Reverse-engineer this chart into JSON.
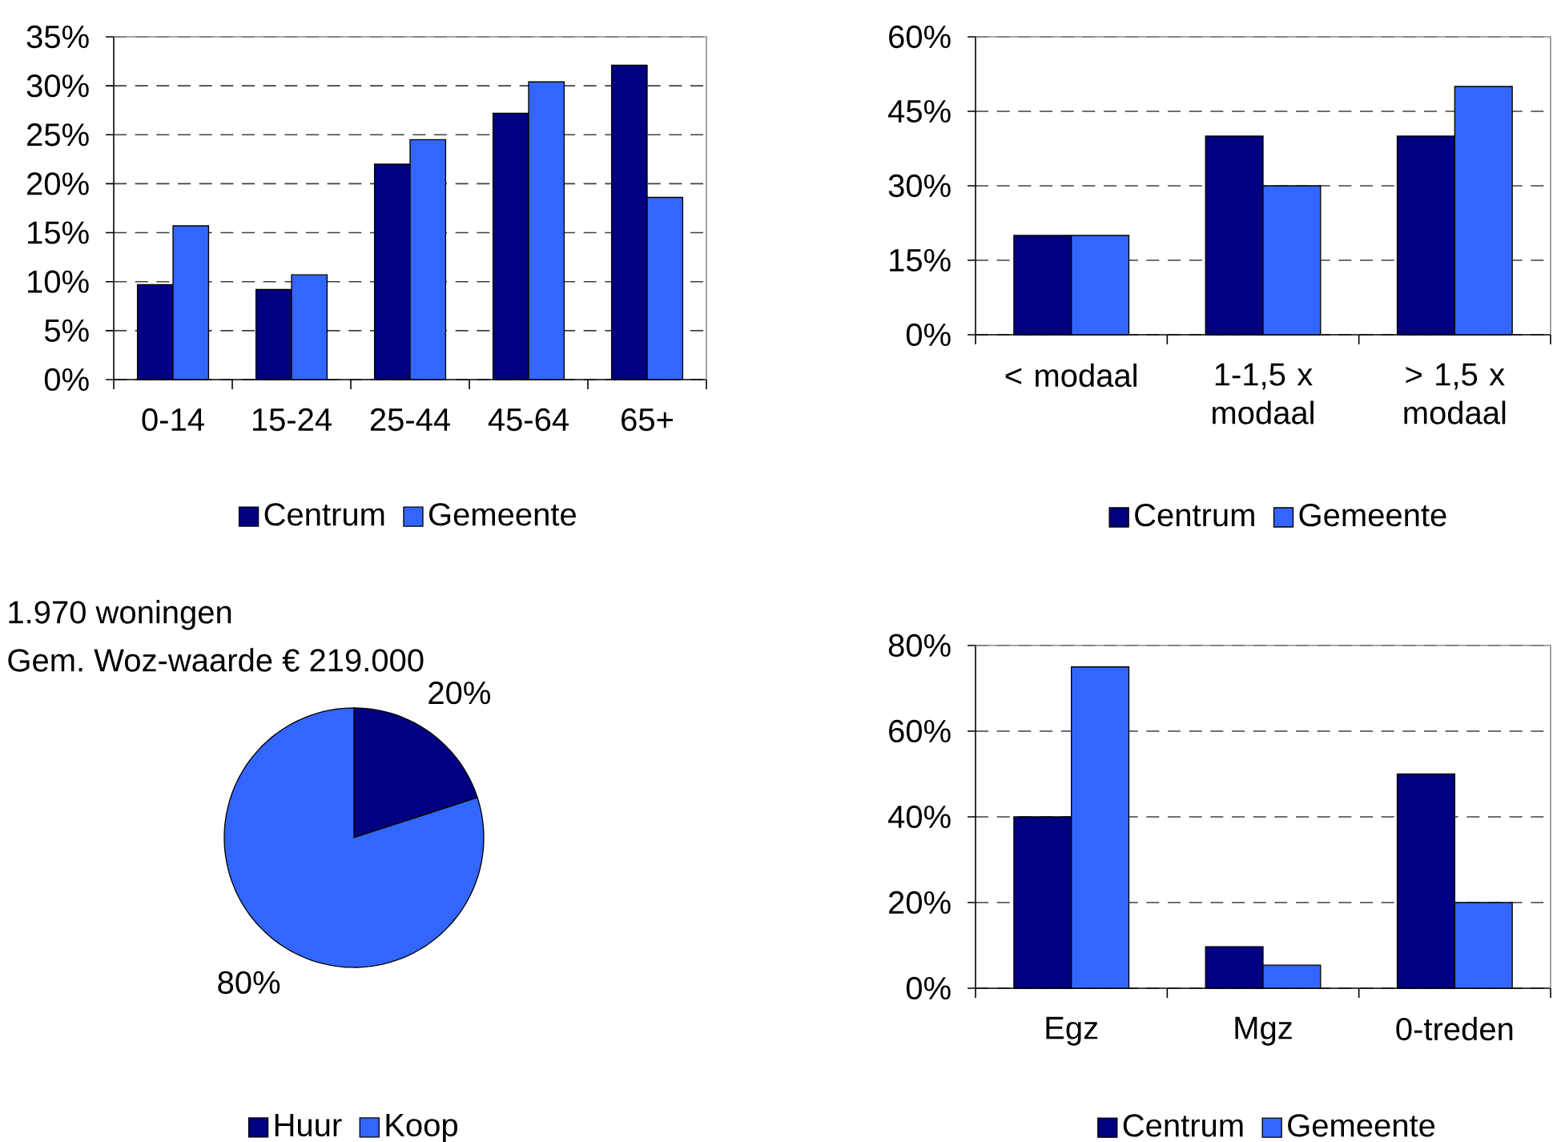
{
  "chart_data": [
    {
      "type": "bar",
      "categories": [
        "0-14",
        "15-24",
        "25-44",
        "45-64",
        "65+"
      ],
      "series": [
        {
          "name": "Centrum",
          "color": "#000080",
          "values": [
            9.7,
            9.2,
            22.0,
            27.2,
            32.1
          ]
        },
        {
          "name": "Gemeente",
          "color": "#3366ff",
          "values": [
            15.7,
            10.7,
            24.5,
            30.4,
            18.6
          ]
        }
      ],
      "ylim": [
        0,
        35
      ],
      "yticks": [
        {
          "value": 0,
          "label": "0%"
        },
        {
          "value": 5,
          "label": "5%"
        },
        {
          "value": 10,
          "label": "10%"
        },
        {
          "value": 15,
          "label": "15%"
        },
        {
          "value": 20,
          "label": "20%"
        },
        {
          "value": 25,
          "label": "25%"
        },
        {
          "value": 30,
          "label": "30%"
        },
        {
          "value": 35,
          "label": "35%"
        }
      ],
      "grid": "y",
      "legend": "bottom"
    },
    {
      "type": "bar",
      "categories": [
        "< modaal",
        "1-1,5 x modaal",
        "> 1,5 x modaal"
      ],
      "series": [
        {
          "name": "Centrum",
          "color": "#000080",
          "values": [
            20,
            40,
            40
          ]
        },
        {
          "name": "Gemeente",
          "color": "#3366ff",
          "values": [
            20,
            30,
            50
          ]
        }
      ],
      "ylim": [
        0,
        60
      ],
      "yticks": [
        {
          "value": 0,
          "label": "0%"
        },
        {
          "value": 15,
          "label": "15%"
        },
        {
          "value": 30,
          "label": "30%"
        },
        {
          "value": 45,
          "label": "45%"
        },
        {
          "value": 60,
          "label": "60%"
        }
      ],
      "grid": "y",
      "legend": "bottom"
    },
    {
      "type": "pie",
      "title": "1.970 woningen",
      "subtitle": "Gem. Woz-waarde € 219.000",
      "categories": [
        "Huur",
        "Koop"
      ],
      "values": [
        20,
        80
      ],
      "colors": [
        "#000080",
        "#3366ff"
      ],
      "value_labels": [
        "20%",
        "80%"
      ],
      "legend": "bottom"
    },
    {
      "type": "bar",
      "categories": [
        "Egz",
        "Mgz",
        "0-treden"
      ],
      "series": [
        {
          "name": "Centrum",
          "color": "#000080",
          "values": [
            40,
            9.7,
            50
          ]
        },
        {
          "name": "Gemeente",
          "color": "#3366ff",
          "values": [
            75,
            5.4,
            20
          ]
        }
      ],
      "ylim": [
        0,
        80
      ],
      "yticks": [
        {
          "value": 0,
          "label": "0%"
        },
        {
          "value": 20,
          "label": "20%"
        },
        {
          "value": 40,
          "label": "40%"
        },
        {
          "value": 60,
          "label": "60%"
        },
        {
          "value": 80,
          "label": "80%"
        }
      ],
      "grid": "y",
      "legend": "bottom"
    }
  ]
}
